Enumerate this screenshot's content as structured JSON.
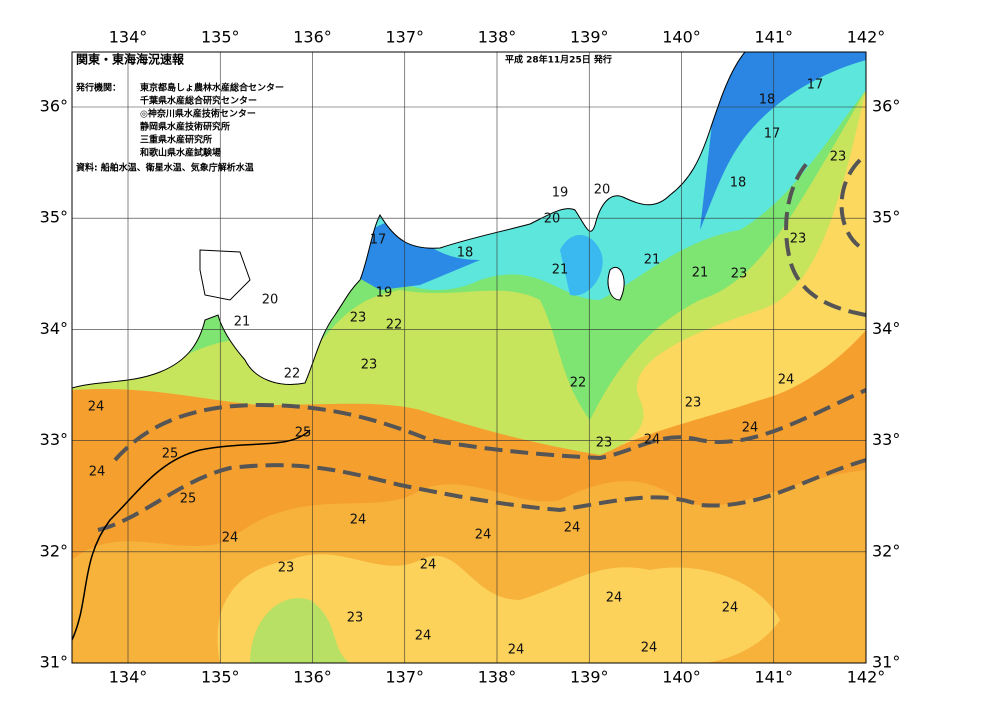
{
  "header": {
    "title": "関東・東海海況速報",
    "date": "平成 28年11月25日 発行",
    "issuer_label": "発行機関：",
    "issuers": [
      "東京都島しょ農林水産総合センター",
      "千葉県水産総合研究センター",
      "◎神奈川県水産技術センター",
      "静岡県水産技術研究所",
      "三重県水産研究所",
      "和歌山県水産試験場"
    ],
    "source": "資料: 船舶水温、衛星水温、気象庁解析水温"
  },
  "map": {
    "lon_ticks": [
      {
        "value": 134,
        "label": "134°"
      },
      {
        "value": 135,
        "label": "135°"
      },
      {
        "value": 136,
        "label": "136°"
      },
      {
        "value": 137,
        "label": "137°"
      },
      {
        "value": 138,
        "label": "138°"
      },
      {
        "value": 139,
        "label": "139°"
      },
      {
        "value": 140,
        "label": "140°"
      },
      {
        "value": 141,
        "label": "141°"
      },
      {
        "value": 142,
        "label": "142°"
      }
    ],
    "lat_ticks": [
      {
        "value": 31,
        "label": "31°"
      },
      {
        "value": 32,
        "label": "32°"
      },
      {
        "value": 33,
        "label": "33°"
      },
      {
        "value": 34,
        "label": "34°"
      },
      {
        "value": 35,
        "label": "35°"
      },
      {
        "value": 36,
        "label": "36°"
      }
    ],
    "contour_labels": [
      "17",
      "18",
      "17",
      "18",
      "23",
      "23",
      "19",
      "20",
      "20",
      "21",
      "21",
      "23",
      "17",
      "18",
      "19",
      "21",
      "23",
      "22",
      "20",
      "21",
      "23",
      "22",
      "22",
      "24",
      "23",
      "24",
      "24",
      "23",
      "24",
      "24",
      "25",
      "25",
      "25",
      "24",
      "24",
      "24",
      "24",
      "23",
      "24",
      "24",
      "24",
      "23",
      "24",
      "24",
      "24"
    ]
  }
}
